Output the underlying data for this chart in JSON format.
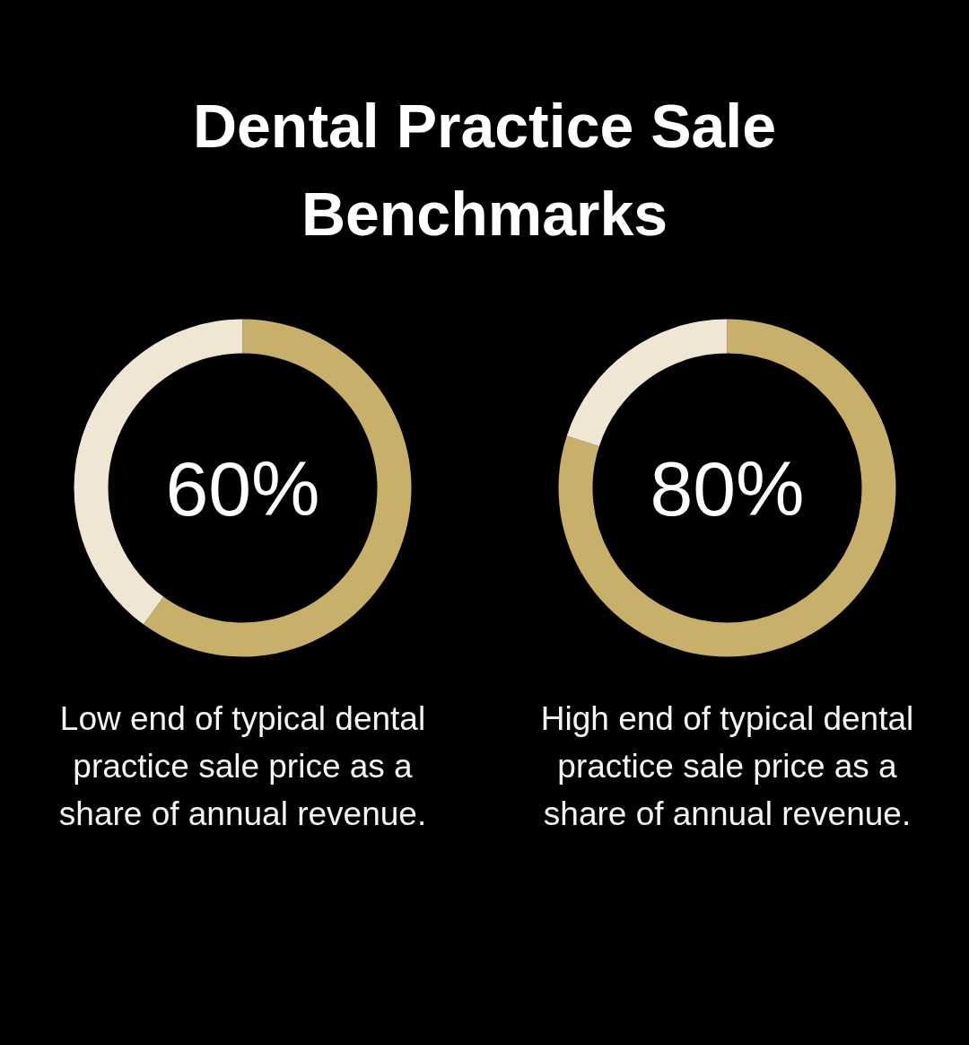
{
  "chart_data": [
    {
      "type": "donut",
      "title": "Dental Practice Sale Benchmarks",
      "categories": [
        null,
        null
      ],
      "values": [
        60,
        40
      ],
      "colors": [
        "#c8b06a",
        "#efe6d4"
      ],
      "value_labels": [
        "60%",
        null
      ],
      "annotations": [
        "Low end of typical dental practice sale price as a share of annual revenue."
      ]
    },
    {
      "type": "donut",
      "categories": [
        null,
        null
      ],
      "values": [
        80,
        20
      ],
      "colors": [
        "#c8b06a",
        "#efe6d4"
      ],
      "value_labels": [
        "80%",
        null
      ],
      "annotations": [
        "High end of typical dental practice sale price as a share of annual revenue."
      ]
    }
  ]
}
